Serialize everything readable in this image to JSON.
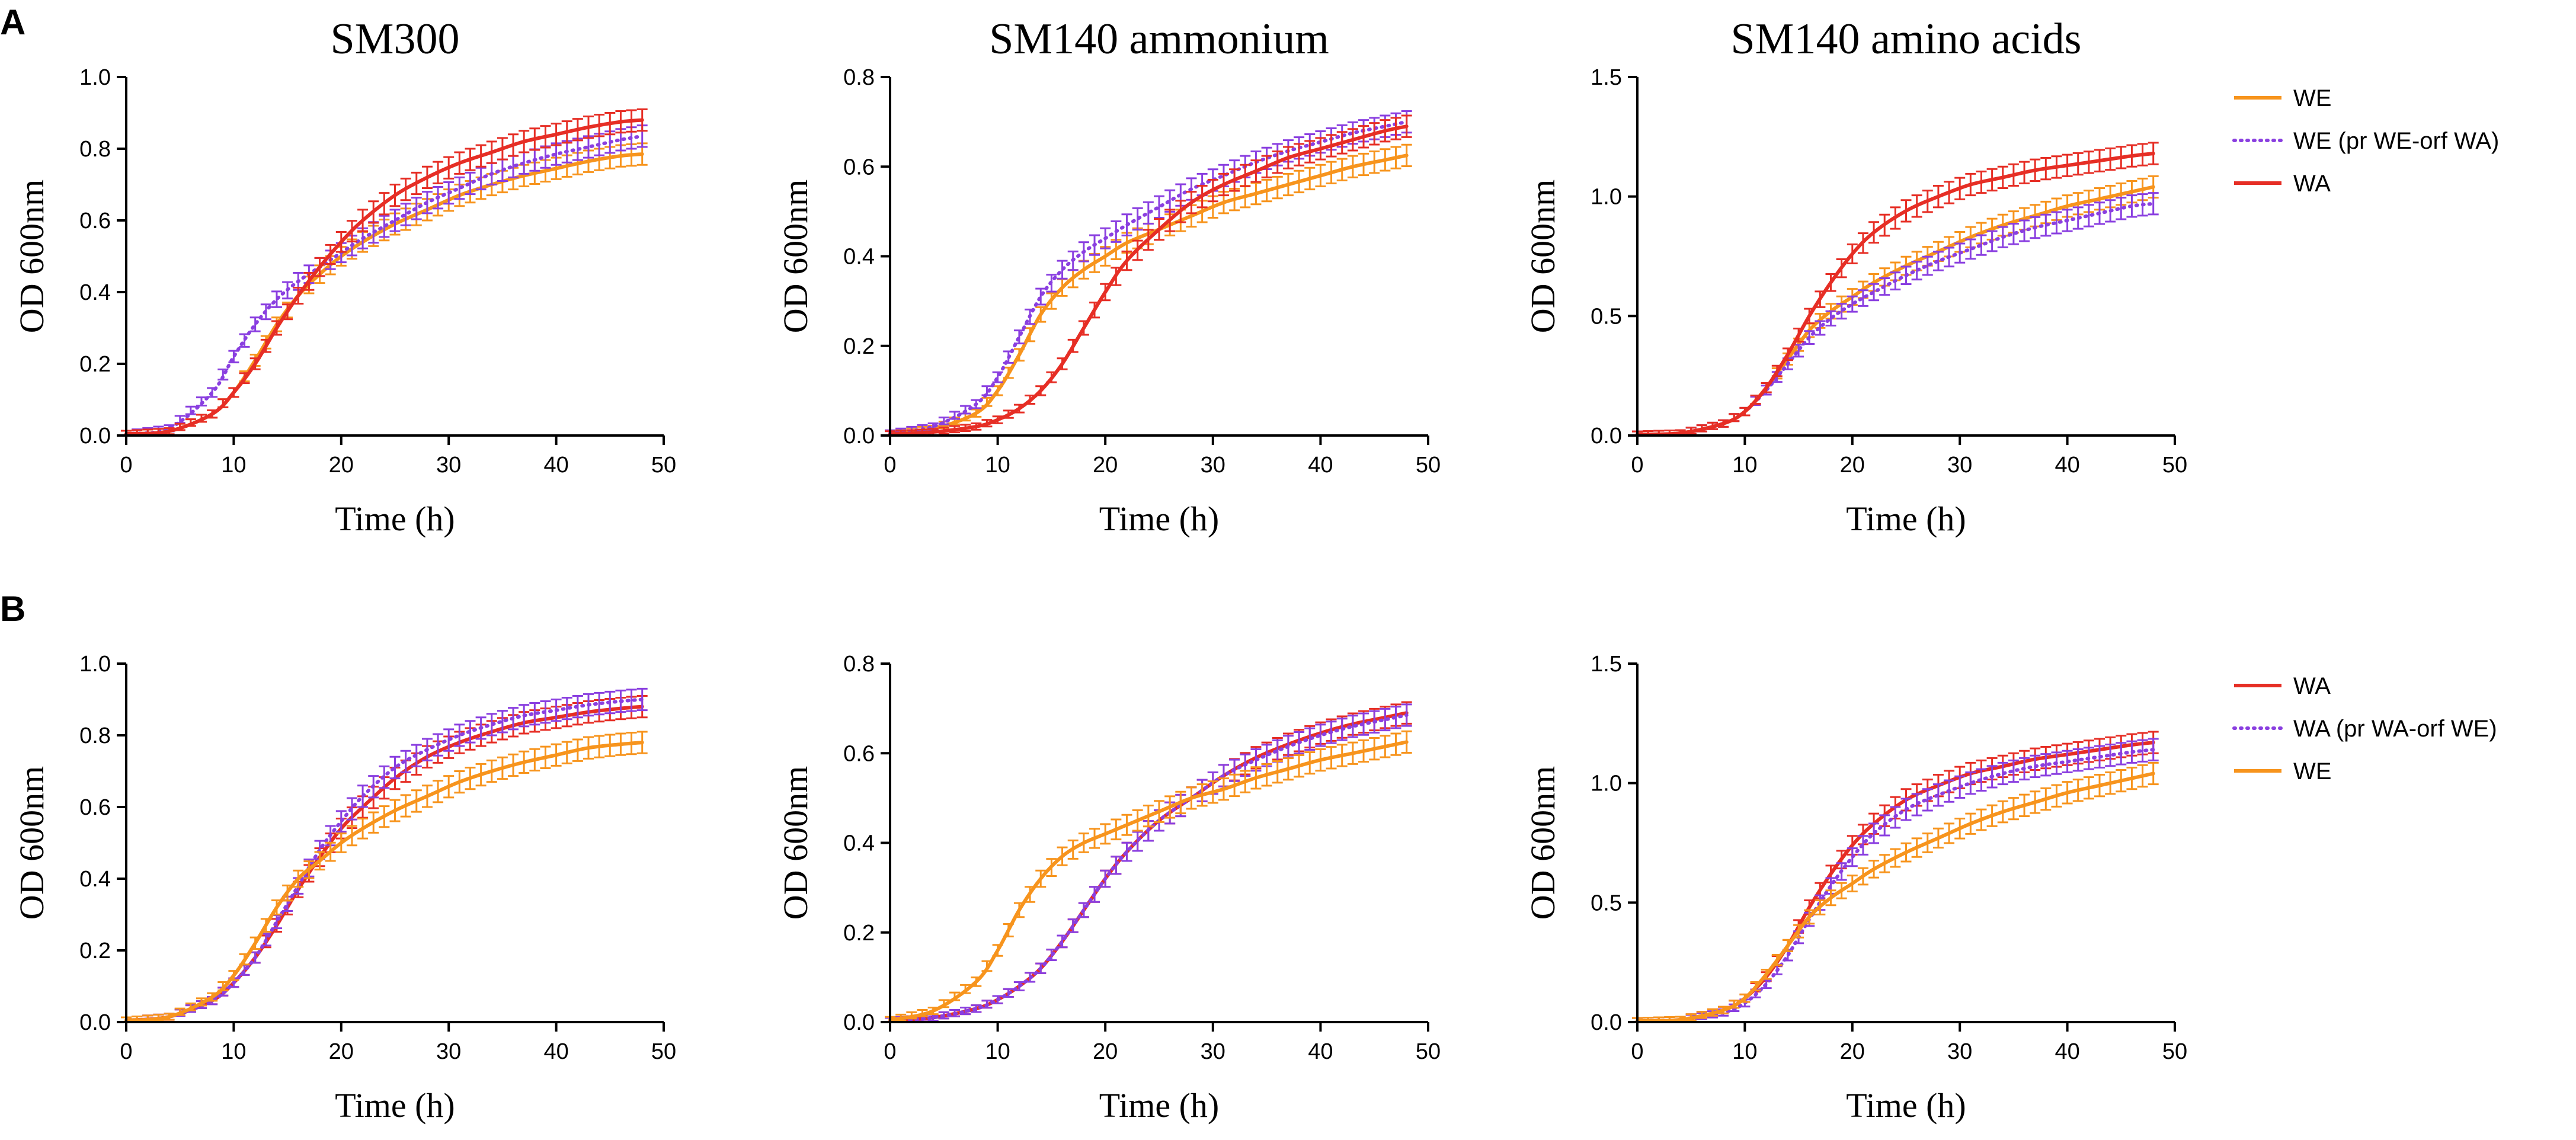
{
  "panel_labels": [
    "A",
    "B"
  ],
  "colors": {
    "WE": "#F7941D",
    "WA": "#E62E25",
    "swap": "#8A3FE0",
    "axis": "#000000"
  },
  "legends": [
    {
      "entries": [
        {
          "label": "WE",
          "color": "#F7941D",
          "dotted": false
        },
        {
          "label": "WE (pr WE-orf WA)",
          "color": "#8A3FE0",
          "dotted": true
        },
        {
          "label": "WA",
          "color": "#E62E25",
          "dotted": false
        }
      ]
    },
    {
      "entries": [
        {
          "label": "WA",
          "color": "#E62E25",
          "dotted": false
        },
        {
          "label": "WA (pr WA-orf WE)",
          "color": "#8A3FE0",
          "dotted": true
        },
        {
          "label": "WE",
          "color": "#F7941D",
          "dotted": false
        }
      ]
    }
  ],
  "chart_data": [
    {
      "type": "line",
      "panel": "A",
      "title": "SM300",
      "xlabel": "Time (h)",
      "ylabel": "OD 600nm",
      "xlim": [
        0,
        50
      ],
      "ylim": [
        0,
        1.0
      ],
      "xticks": [
        "0",
        "10",
        "20",
        "30",
        "40",
        "50"
      ],
      "yticks": [
        "0.0",
        "0.2",
        "0.4",
        "0.6",
        "0.8",
        "1.0"
      ],
      "x": [
        0,
        4,
        8,
        10,
        12,
        14,
        16,
        18,
        20,
        22,
        25,
        28,
        31,
        34,
        37,
        40,
        43,
        46,
        48
      ],
      "series": [
        {
          "name": "WE",
          "color": "#F7941D",
          "dotted": false,
          "values": [
            0.005,
            0.012,
            0.06,
            0.12,
            0.21,
            0.31,
            0.39,
            0.45,
            0.5,
            0.54,
            0.59,
            0.63,
            0.67,
            0.7,
            0.725,
            0.745,
            0.765,
            0.78,
            0.785
          ]
        },
        {
          "name": "WE (pr WE-orf WA)",
          "color": "#8A3FE0",
          "dotted": true,
          "values": [
            0.005,
            0.02,
            0.12,
            0.22,
            0.31,
            0.38,
            0.43,
            0.47,
            0.51,
            0.55,
            0.6,
            0.65,
            0.69,
            0.73,
            0.76,
            0.785,
            0.805,
            0.825,
            0.835
          ]
        },
        {
          "name": "WA",
          "color": "#E62E25",
          "dotted": false,
          "values": [
            0.005,
            0.012,
            0.06,
            0.12,
            0.2,
            0.3,
            0.39,
            0.47,
            0.54,
            0.6,
            0.67,
            0.72,
            0.76,
            0.79,
            0.82,
            0.84,
            0.86,
            0.875,
            0.88
          ]
        }
      ]
    },
    {
      "type": "line",
      "panel": "A",
      "title": "SM140 ammonium",
      "xlabel": "Time (h)",
      "ylabel": "OD 600nm",
      "xlim": [
        0,
        50
      ],
      "ylim": [
        0,
        0.8
      ],
      "xticks": [
        "0",
        "10",
        "20",
        "30",
        "40",
        "50"
      ],
      "yticks": [
        "0.0",
        "0.2",
        "0.4",
        "0.6",
        "0.8"
      ],
      "x": [
        0,
        4,
        8,
        10,
        12,
        14,
        16,
        18,
        20,
        22,
        25,
        28,
        31,
        34,
        37,
        40,
        43,
        46,
        48
      ],
      "series": [
        {
          "name": "WE",
          "color": "#F7941D",
          "dotted": false,
          "values": [
            0.005,
            0.015,
            0.05,
            0.1,
            0.18,
            0.27,
            0.33,
            0.37,
            0.4,
            0.43,
            0.46,
            0.49,
            0.52,
            0.54,
            0.56,
            0.58,
            0.6,
            0.615,
            0.625
          ]
        },
        {
          "name": "WE (pr WE-orf WA)",
          "color": "#8A3FE0",
          "dotted": true,
          "values": [
            0.005,
            0.02,
            0.07,
            0.13,
            0.22,
            0.31,
            0.37,
            0.41,
            0.44,
            0.47,
            0.51,
            0.55,
            0.58,
            0.61,
            0.635,
            0.655,
            0.675,
            0.69,
            0.7
          ]
        },
        {
          "name": "WA",
          "color": "#E62E25",
          "dotted": false,
          "values": [
            0.003,
            0.008,
            0.02,
            0.035,
            0.06,
            0.1,
            0.16,
            0.24,
            0.32,
            0.39,
            0.46,
            0.52,
            0.56,
            0.59,
            0.62,
            0.64,
            0.66,
            0.68,
            0.69
          ]
        }
      ]
    },
    {
      "type": "line",
      "panel": "A",
      "title": "SM140 amino acids",
      "xlabel": "Time (h)",
      "ylabel": "OD 600nm",
      "xlim": [
        0,
        50
      ],
      "ylim": [
        0,
        1.5
      ],
      "xticks": [
        "0",
        "10",
        "20",
        "30",
        "40",
        "50"
      ],
      "yticks": [
        "0.0",
        "0.5",
        "1.0",
        "1.5"
      ],
      "x": [
        0,
        4,
        8,
        10,
        12,
        14,
        16,
        18,
        20,
        22,
        25,
        28,
        31,
        34,
        37,
        40,
        43,
        46,
        48
      ],
      "series": [
        {
          "name": "WE",
          "color": "#F7941D",
          "dotted": false,
          "values": [
            0.005,
            0.01,
            0.05,
            0.1,
            0.2,
            0.32,
            0.44,
            0.52,
            0.58,
            0.64,
            0.71,
            0.77,
            0.83,
            0.88,
            0.92,
            0.96,
            0.99,
            1.02,
            1.04
          ]
        },
        {
          "name": "WE (pr WE-orf WA)",
          "color": "#8A3FE0",
          "dotted": true,
          "values": [
            0.005,
            0.01,
            0.05,
            0.1,
            0.19,
            0.3,
            0.41,
            0.49,
            0.55,
            0.6,
            0.67,
            0.73,
            0.78,
            0.83,
            0.87,
            0.9,
            0.93,
            0.96,
            0.97
          ]
        },
        {
          "name": "WA",
          "color": "#E62E25",
          "dotted": false,
          "values": [
            0.005,
            0.01,
            0.05,
            0.1,
            0.2,
            0.34,
            0.5,
            0.64,
            0.76,
            0.85,
            0.94,
            1.0,
            1.05,
            1.08,
            1.11,
            1.13,
            1.15,
            1.17,
            1.18
          ]
        }
      ]
    },
    {
      "type": "line",
      "panel": "B",
      "title": "",
      "xlabel": "Time (h)",
      "ylabel": "OD 600nm",
      "xlim": [
        0,
        50
      ],
      "ylim": [
        0,
        1.0
      ],
      "xticks": [
        "0",
        "10",
        "20",
        "30",
        "40",
        "50"
      ],
      "yticks": [
        "0.0",
        "0.2",
        "0.4",
        "0.6",
        "0.8",
        "1.0"
      ],
      "x": [
        0,
        4,
        8,
        10,
        12,
        14,
        16,
        18,
        20,
        22,
        25,
        28,
        31,
        34,
        37,
        40,
        43,
        46,
        48
      ],
      "series": [
        {
          "name": "WA",
          "color": "#E62E25",
          "dotted": false,
          "values": [
            0.005,
            0.015,
            0.06,
            0.11,
            0.18,
            0.27,
            0.37,
            0.46,
            0.54,
            0.6,
            0.68,
            0.74,
            0.78,
            0.81,
            0.835,
            0.85,
            0.865,
            0.875,
            0.88
          ]
        },
        {
          "name": "WA (pr WA-orf WE)",
          "color": "#8A3FE0",
          "dotted": true,
          "values": [
            0.005,
            0.015,
            0.06,
            0.11,
            0.18,
            0.28,
            0.38,
            0.48,
            0.56,
            0.63,
            0.71,
            0.76,
            0.8,
            0.83,
            0.855,
            0.87,
            0.885,
            0.895,
            0.9
          ]
        },
        {
          "name": "WE",
          "color": "#F7941D",
          "dotted": false,
          "values": [
            0.005,
            0.015,
            0.07,
            0.13,
            0.22,
            0.32,
            0.4,
            0.45,
            0.5,
            0.54,
            0.59,
            0.63,
            0.67,
            0.7,
            0.725,
            0.745,
            0.765,
            0.775,
            0.78
          ]
        }
      ]
    },
    {
      "type": "line",
      "panel": "B",
      "title": "",
      "xlabel": "Time (h)",
      "ylabel": "OD 600nm",
      "xlim": [
        0,
        50
      ],
      "ylim": [
        0,
        0.8
      ],
      "xticks": [
        "0",
        "10",
        "20",
        "30",
        "40",
        "50"
      ],
      "yticks": [
        "0.0",
        "0.2",
        "0.4",
        "0.6",
        "0.8"
      ],
      "x": [
        0,
        4,
        8,
        10,
        12,
        14,
        16,
        18,
        20,
        22,
        25,
        28,
        31,
        34,
        37,
        40,
        43,
        46,
        48
      ],
      "series": [
        {
          "name": "WA",
          "color": "#E62E25",
          "dotted": false,
          "values": [
            0.003,
            0.01,
            0.03,
            0.05,
            0.08,
            0.12,
            0.18,
            0.25,
            0.32,
            0.38,
            0.45,
            0.5,
            0.55,
            0.59,
            0.62,
            0.645,
            0.665,
            0.68,
            0.69
          ]
        },
        {
          "name": "WA (pr WA-orf WE)",
          "color": "#8A3FE0",
          "dotted": true,
          "values": [
            0.003,
            0.01,
            0.03,
            0.05,
            0.08,
            0.12,
            0.18,
            0.25,
            0.32,
            0.38,
            0.45,
            0.5,
            0.55,
            0.585,
            0.615,
            0.64,
            0.66,
            0.675,
            0.685
          ]
        },
        {
          "name": "WE",
          "color": "#F7941D",
          "dotted": false,
          "values": [
            0.005,
            0.025,
            0.09,
            0.16,
            0.25,
            0.32,
            0.37,
            0.4,
            0.42,
            0.44,
            0.47,
            0.5,
            0.52,
            0.545,
            0.565,
            0.585,
            0.6,
            0.615,
            0.625
          ]
        }
      ]
    },
    {
      "type": "line",
      "panel": "B",
      "title": "",
      "xlabel": "Time (h)",
      "ylabel": "OD 600nm",
      "xlim": [
        0,
        50
      ],
      "ylim": [
        0,
        1.5
      ],
      "xticks": [
        "0",
        "10",
        "20",
        "30",
        "40",
        "50"
      ],
      "yticks": [
        "0.0",
        "0.5",
        "1.0",
        "1.5"
      ],
      "x": [
        0,
        4,
        8,
        10,
        12,
        14,
        16,
        18,
        20,
        22,
        25,
        28,
        31,
        34,
        37,
        40,
        43,
        46,
        48
      ],
      "series": [
        {
          "name": "WA",
          "color": "#E62E25",
          "dotted": false,
          "values": [
            0.005,
            0.01,
            0.05,
            0.1,
            0.19,
            0.32,
            0.48,
            0.62,
            0.74,
            0.83,
            0.93,
            0.99,
            1.04,
            1.07,
            1.1,
            1.12,
            1.14,
            1.16,
            1.17
          ]
        },
        {
          "name": "WA (pr WA-orf WE)",
          "color": "#8A3FE0",
          "dotted": true,
          "values": [
            0.005,
            0.01,
            0.04,
            0.08,
            0.16,
            0.28,
            0.43,
            0.57,
            0.69,
            0.79,
            0.89,
            0.95,
            1.0,
            1.04,
            1.07,
            1.09,
            1.11,
            1.13,
            1.14
          ]
        },
        {
          "name": "WE",
          "color": "#F7941D",
          "dotted": false,
          "values": [
            0.005,
            0.01,
            0.05,
            0.1,
            0.2,
            0.32,
            0.44,
            0.52,
            0.58,
            0.64,
            0.71,
            0.77,
            0.83,
            0.88,
            0.92,
            0.96,
            0.99,
            1.02,
            1.04
          ]
        }
      ]
    }
  ]
}
